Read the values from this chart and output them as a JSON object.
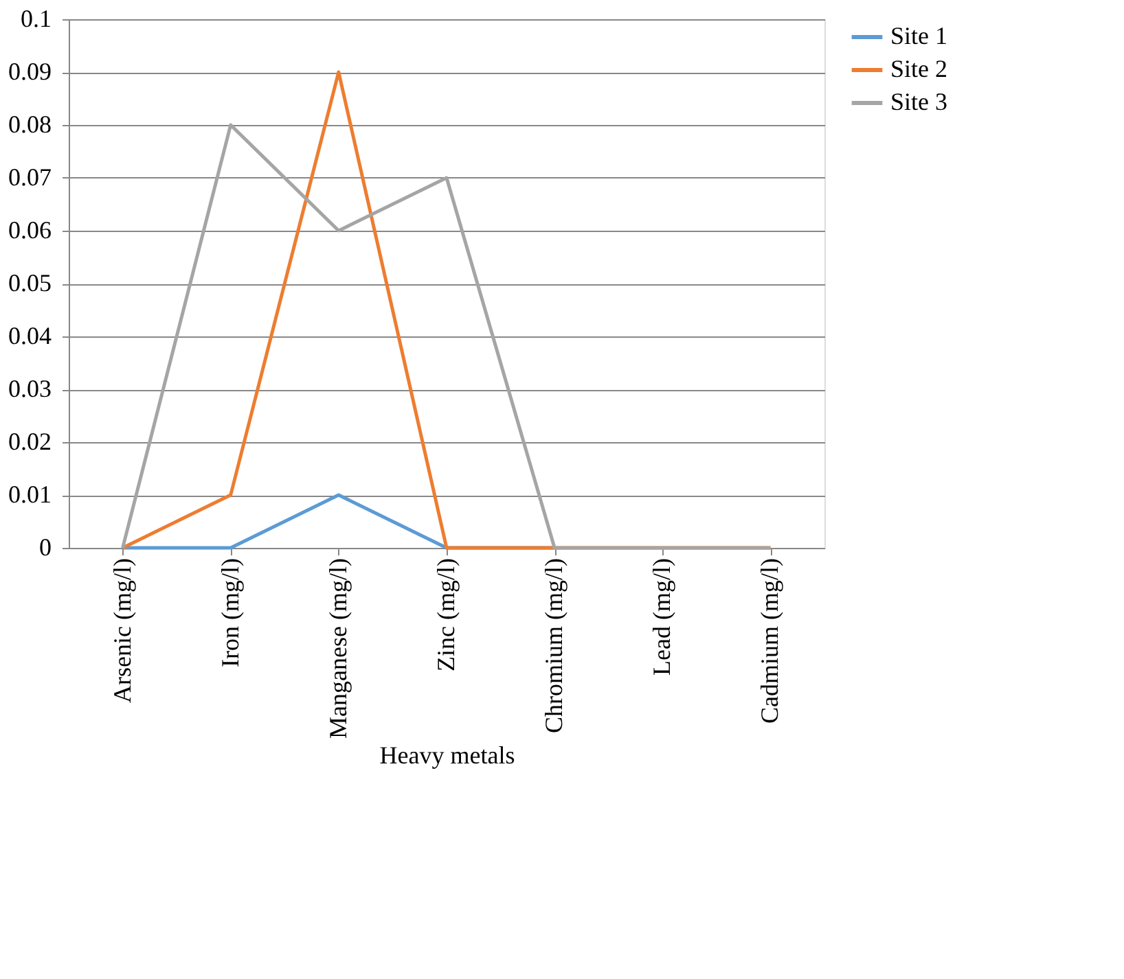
{
  "chart_data": {
    "type": "line",
    "xlabel": "Heavy metals",
    "categories": [
      "Arsenic (mg/l)",
      "Iron (mg/l)",
      "Manganese (mg/l)",
      "Zinc (mg/l)",
      "Chromium (mg/l)",
      "Lead (mg/l)",
      "Cadmium (mg/l)"
    ],
    "series": [
      {
        "name": "Site 1",
        "color": "#5b9bd5",
        "values": [
          0,
          0,
          0.01,
          0,
          0,
          null,
          null
        ]
      },
      {
        "name": "Site 2",
        "color": "#ed7d31",
        "values": [
          0,
          0.01,
          0.09,
          0,
          0,
          0,
          0
        ]
      },
      {
        "name": "Site 3",
        "color": "#a5a5a5",
        "values": [
          0,
          0.08,
          0.06,
          0.07,
          0,
          0,
          0
        ]
      }
    ],
    "ylim": [
      0,
      0.1
    ],
    "yticks": [
      0,
      0.01,
      0.02,
      0.03,
      0.04,
      0.05,
      0.06,
      0.07,
      0.08,
      0.09,
      0.1
    ],
    "grid": "y",
    "legend": "right",
    "marker": "none",
    "line_style": "solid"
  }
}
